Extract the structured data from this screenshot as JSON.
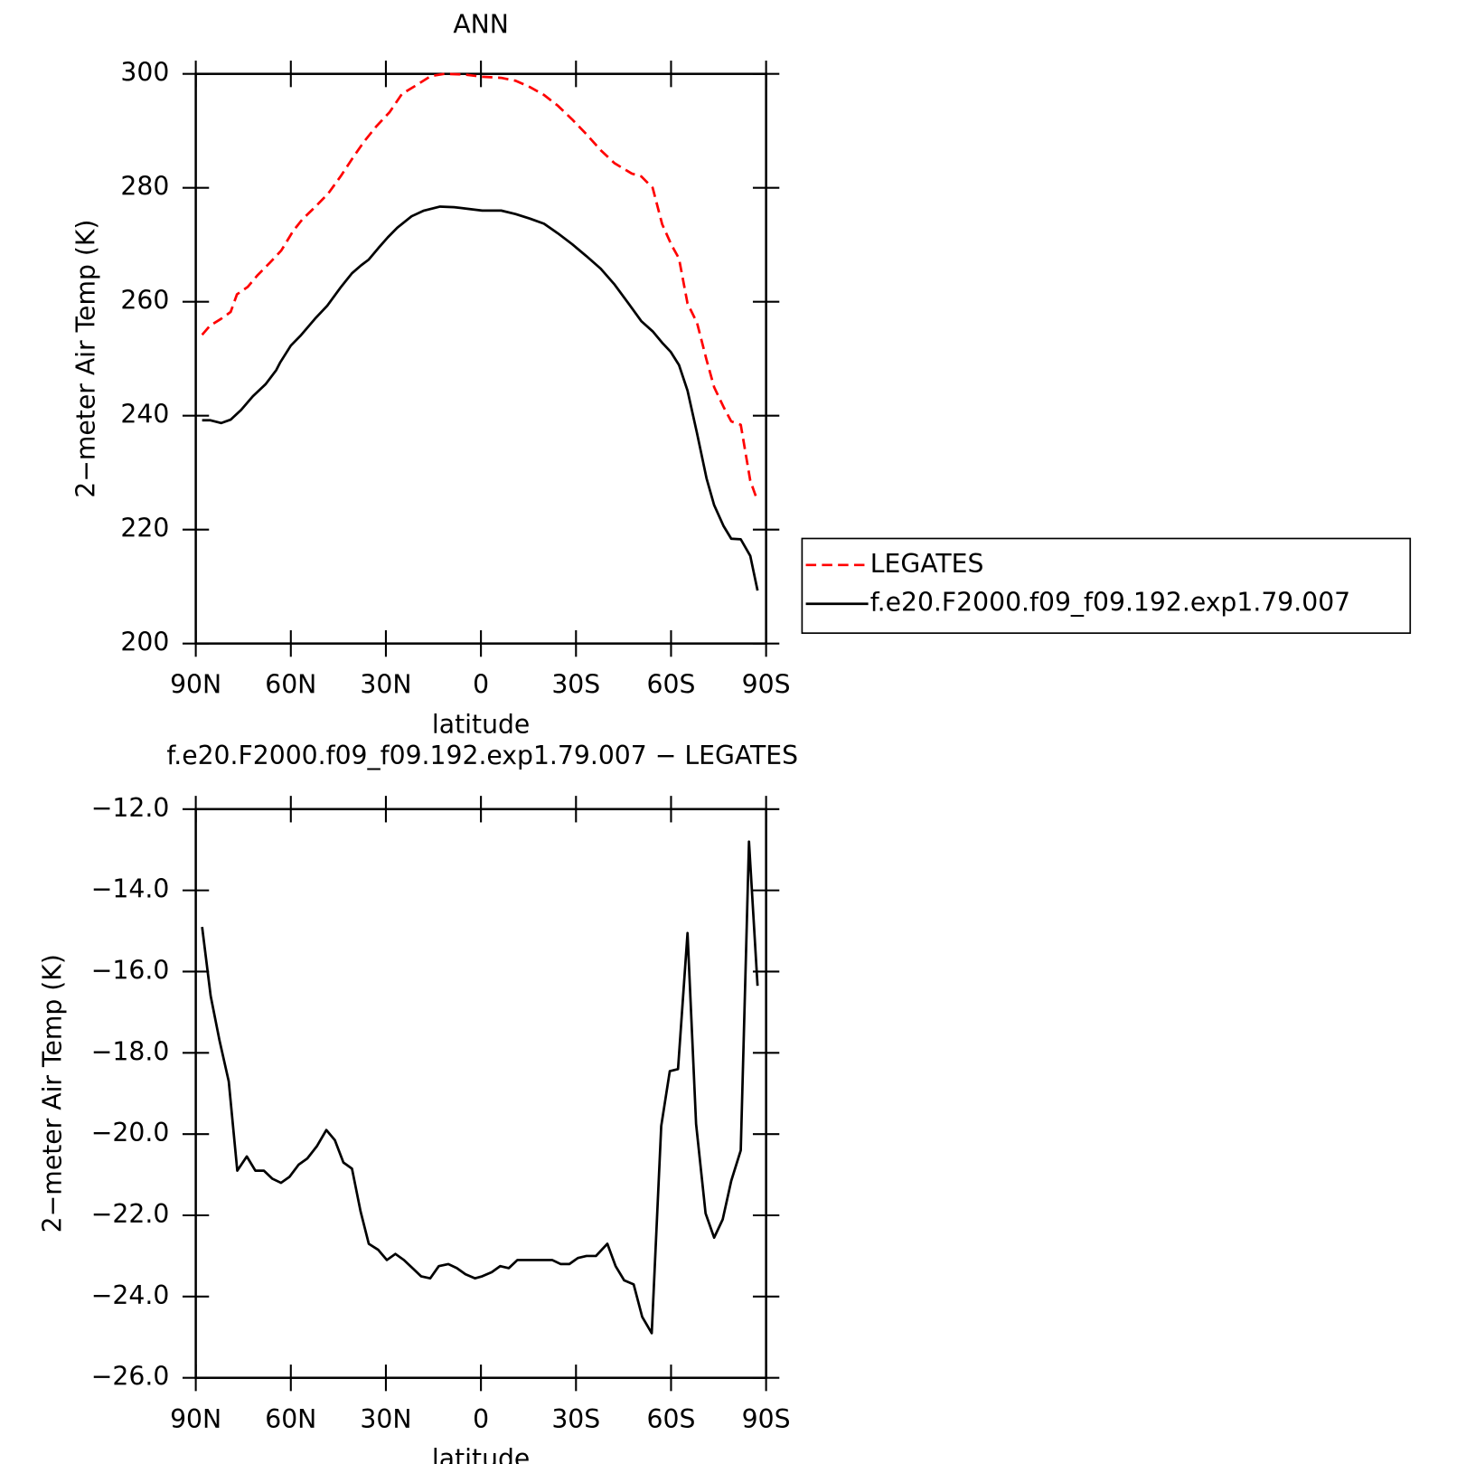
{
  "chart_data": [
    {
      "type": "line",
      "title": "ANN",
      "xlabel": "latitude",
      "ylabel": "2−meter Air Temp (K)",
      "xlim": [
        90,
        -90
      ],
      "xticks": [
        {
          "value": 90,
          "label": "90N"
        },
        {
          "value": 60,
          "label": "60N"
        },
        {
          "value": 30,
          "label": "30N"
        },
        0,
        {
          "value": -30,
          "label": "30S"
        },
        {
          "value": -60,
          "label": "60S"
        },
        {
          "value": -90,
          "label": "90S"
        }
      ],
      "ylim": [
        200,
        300
      ],
      "yticks": [
        200,
        220,
        240,
        260,
        280,
        300
      ],
      "legend": "right",
      "series": [
        {
          "name": "LEGATES",
          "color": "#ff0000",
          "dash": true,
          "x": [
            88,
            85.5,
            82,
            79,
            77,
            73.6,
            70.6,
            66.7,
            63,
            59.3,
            56.3,
            52.4,
            48.2,
            44.3,
            40.4,
            36.9,
            33,
            28.8,
            24.9,
            20.4,
            15.9,
            11.5,
            5.5,
            -0.4,
            -6.4,
            -10.9,
            -15.4,
            -19.9,
            -24.3,
            -28.8,
            -33.3,
            -37.8,
            -42.2,
            -47.6,
            -50.6,
            -54.2,
            -57.2,
            -60.1,
            -62.5,
            -65.2,
            -68.2,
            -71.2,
            -73.6,
            -76.6,
            -79,
            -82,
            -85,
            -87.3
          ],
          "values": [
            254.2,
            255.8,
            257,
            258.2,
            261.3,
            262.6,
            264.6,
            266.8,
            269,
            272.4,
            274.5,
            276.6,
            279,
            282,
            285.3,
            288.1,
            290.8,
            293.3,
            296.5,
            298,
            299.6,
            300,
            299.9,
            299.5,
            299.3,
            298.8,
            297.7,
            296.3,
            294.4,
            292,
            289.4,
            286.6,
            284.3,
            282.5,
            282,
            280,
            273.6,
            270,
            267.6,
            259.7,
            256.3,
            249.8,
            245,
            241.5,
            239,
            238.4,
            228.6,
            225
          ]
        },
        {
          "name": "f.e20.F2000.f09_f09.192.exp1.79.007",
          "color": "#000000",
          "dash": false,
          "x": [
            88,
            85.5,
            82,
            79,
            75.7,
            72,
            68,
            64.6,
            63.4,
            60,
            57,
            52.4,
            48.5,
            44.3,
            40.7,
            37.8,
            35.4,
            32.4,
            29.4,
            26.4,
            21.9,
            18,
            12.9,
            8.5,
            4,
            -0.4,
            -6.4,
            -10.9,
            -15.4,
            -19.9,
            -24.3,
            -28.8,
            -33.3,
            -37.8,
            -42.2,
            -46.7,
            -50.6,
            -54.2,
            -57.2,
            -59.9,
            -62.5,
            -65.2,
            -68.2,
            -71.2,
            -73.6,
            -76.6,
            -79,
            -82,
            -85,
            -87.3
          ],
          "values": [
            239.2,
            239.2,
            238.7,
            239.3,
            241,
            243.4,
            245.5,
            248,
            249.3,
            252.3,
            254,
            257,
            259.3,
            262.5,
            265,
            266.4,
            267.4,
            269.4,
            271.3,
            273,
            275,
            276,
            276.7,
            276.6,
            276.3,
            276,
            276,
            275.4,
            274.6,
            273.7,
            272,
            270.1,
            268,
            265.8,
            263,
            259.6,
            256.6,
            254.8,
            252.8,
            251.2,
            248.9,
            244.4,
            236.9,
            229,
            224.3,
            220.6,
            218.4,
            218.3,
            215.4,
            209.3
          ]
        }
      ]
    },
    {
      "type": "line",
      "title": "f.e20.F2000.f09_f09.192.exp1.79.007 − LEGATES",
      "xlabel": "latitude",
      "ylabel": "2−meter Air Temp (K)",
      "xlim": [
        90,
        -90
      ],
      "xticks": [
        {
          "value": 90,
          "label": "90N"
        },
        {
          "value": 60,
          "label": "60N"
        },
        {
          "value": 30,
          "label": "30N"
        },
        0,
        {
          "value": -30,
          "label": "30S"
        },
        {
          "value": -60,
          "label": "60S"
        },
        {
          "value": -90,
          "label": "90S"
        }
      ],
      "ylim": [
        -26,
        -12
      ],
      "yticks": [
        {
          "value": -26,
          "label": "−26.0"
        },
        {
          "value": -24,
          "label": "−24.0"
        },
        {
          "value": -22,
          "label": "−22.0"
        },
        {
          "value": -20,
          "label": "−20.0"
        },
        {
          "value": -18,
          "label": "−18.0"
        },
        {
          "value": -16,
          "label": "−16.0"
        },
        {
          "value": -14,
          "label": "−14.0"
        },
        {
          "value": -12,
          "label": "−12.0"
        }
      ],
      "series": [
        {
          "color": "#000000",
          "dash": false,
          "x": [
            88,
            85.3,
            82.5,
            79.6,
            76.9,
            73.9,
            71.2,
            68.5,
            65.8,
            63.1,
            60.4,
            57.5,
            54.8,
            51.8,
            48.8,
            46.1,
            43.4,
            40.7,
            38,
            35.4,
            32.4,
            29.7,
            27,
            24.3,
            21.6,
            18.9,
            16,
            13.3,
            10.3,
            7.6,
            4.9,
            1.9,
            -0.4,
            -3.4,
            -6.1,
            -8.8,
            -11.5,
            -14.2,
            -17.2,
            -19.9,
            -22.5,
            -25.2,
            -27.9,
            -30.6,
            -33.3,
            -36.3,
            -39.9,
            -42.5,
            -45.2,
            -48.2,
            -50.9,
            -53.9,
            -56.9,
            -59.6,
            -62.2,
            -65.2,
            -67.9,
            -70.9,
            -73.6,
            -76.3,
            -79,
            -82,
            -84.6,
            -87.3
          ],
          "values": [
            -14.9,
            -16.6,
            -17.7,
            -18.7,
            -20.9,
            -20.55,
            -20.9,
            -20.9,
            -21.1,
            -21.2,
            -21.05,
            -20.75,
            -20.6,
            -20.3,
            -19.9,
            -20.15,
            -20.7,
            -20.85,
            -21.9,
            -22.7,
            -22.85,
            -23.1,
            -22.95,
            -23.1,
            -23.3,
            -23.5,
            -23.55,
            -23.25,
            -23.2,
            -23.3,
            -23.45,
            -23.55,
            -23.5,
            -23.4,
            -23.25,
            -23.3,
            -23.1,
            -23.1,
            -23.1,
            -23.1,
            -23.1,
            -23.2,
            -23.2,
            -23.05,
            -23,
            -23,
            -22.7,
            -23.25,
            -23.6,
            -23.7,
            -24.5,
            -24.9,
            -19.8,
            -18.45,
            -18.4,
            -15.05,
            -19.75,
            -21.95,
            -22.55,
            -22.1,
            -21.15,
            -20.4,
            -12.8,
            -16.35
          ]
        }
      ]
    }
  ]
}
